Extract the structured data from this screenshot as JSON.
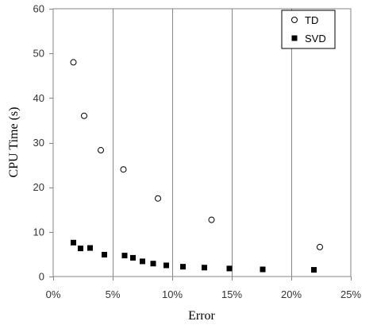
{
  "chart_data": {
    "type": "scatter",
    "xlabel": "Error",
    "ylabel": "CPU Time (s)",
    "xlim": [
      0,
      0.25
    ],
    "ylim": [
      0,
      60
    ],
    "x_ticks": [
      "0%",
      "5%",
      "10%",
      "15%",
      "20%",
      "25%"
    ],
    "x_tick_values": [
      0,
      0.05,
      0.1,
      0.15,
      0.2,
      0.25
    ],
    "y_ticks": [
      "0",
      "10",
      "20",
      "30",
      "40",
      "50",
      "60"
    ],
    "y_tick_values": [
      0,
      10,
      20,
      30,
      40,
      50,
      60
    ],
    "grid": "vertical",
    "legend_position": "top-right",
    "series": [
      {
        "name": "TD",
        "marker": "open-circle",
        "color": "#000000",
        "points": [
          {
            "x": 0.017,
            "y": 48.0
          },
          {
            "x": 0.026,
            "y": 36.0
          },
          {
            "x": 0.04,
            "y": 28.3
          },
          {
            "x": 0.059,
            "y": 24.0
          },
          {
            "x": 0.088,
            "y": 17.5
          },
          {
            "x": 0.133,
            "y": 12.7
          },
          {
            "x": 0.224,
            "y": 6.6
          }
        ]
      },
      {
        "name": "SVD",
        "marker": "filled-square",
        "color": "#000000",
        "points": [
          {
            "x": 0.017,
            "y": 7.6
          },
          {
            "x": 0.023,
            "y": 6.3
          },
          {
            "x": 0.031,
            "y": 6.4
          },
          {
            "x": 0.043,
            "y": 4.9
          },
          {
            "x": 0.06,
            "y": 4.7
          },
          {
            "x": 0.067,
            "y": 4.2
          },
          {
            "x": 0.075,
            "y": 3.4
          },
          {
            "x": 0.084,
            "y": 2.9
          },
          {
            "x": 0.095,
            "y": 2.5
          },
          {
            "x": 0.109,
            "y": 2.2
          },
          {
            "x": 0.127,
            "y": 2.0
          },
          {
            "x": 0.148,
            "y": 1.8
          },
          {
            "x": 0.176,
            "y": 1.6
          },
          {
            "x": 0.219,
            "y": 1.5
          }
        ]
      }
    ]
  }
}
